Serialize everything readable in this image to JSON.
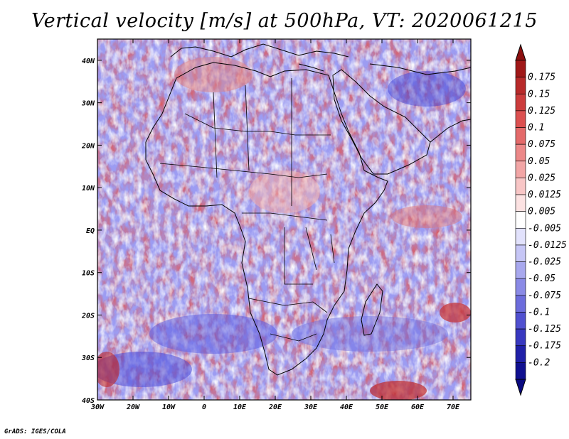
{
  "title": "Vertical velocity [m/s] at 500hPa, VT: 2020061215",
  "credit": "GrADS: IGES/COLA",
  "map": {
    "lon_range": [
      -30,
      75
    ],
    "lat_range": [
      -40,
      45
    ],
    "lat_ticks": [
      {
        "value": 40,
        "label": "40N"
      },
      {
        "value": 30,
        "label": "30N"
      },
      {
        "value": 20,
        "label": "20N"
      },
      {
        "value": 10,
        "label": "10N"
      },
      {
        "value": 0,
        "label": "EQ"
      },
      {
        "value": -10,
        "label": "10S"
      },
      {
        "value": -20,
        "label": "20S"
      },
      {
        "value": -30,
        "label": "30S"
      },
      {
        "value": -40,
        "label": "40S"
      }
    ],
    "lon_ticks": [
      {
        "value": -30,
        "label": "30W"
      },
      {
        "value": -20,
        "label": "20W"
      },
      {
        "value": -10,
        "label": "10W"
      },
      {
        "value": 0,
        "label": "0"
      },
      {
        "value": 10,
        "label": "10E"
      },
      {
        "value": 20,
        "label": "20E"
      },
      {
        "value": 30,
        "label": "30E"
      },
      {
        "value": 40,
        "label": "40E"
      },
      {
        "value": 50,
        "label": "50E"
      },
      {
        "value": 60,
        "label": "60E"
      },
      {
        "value": 70,
        "label": "70E"
      }
    ]
  },
  "colorbar": {
    "labels": [
      "0.175",
      "0.15",
      "0.125",
      "0.1",
      "0.075",
      "0.05",
      "0.025",
      "0.0125",
      "0.005",
      "-0.005",
      "-0.0125",
      "-0.025",
      "-0.05",
      "-0.075",
      "-0.1",
      "-0.125",
      "-0.175",
      "-0.2"
    ],
    "colors": [
      "#a01818",
      "#b82a2a",
      "#cc3c3c",
      "#dc5050",
      "#e46a6a",
      "#ec8888",
      "#f2a6a6",
      "#f8c6c6",
      "#fce2e2",
      "#ffffff",
      "#e2e2fc",
      "#c6c6f6",
      "#a8a8ee",
      "#8a8ae6",
      "#6c6cdc",
      "#5050d0",
      "#3838c0",
      "#2020a8",
      "#101090"
    ],
    "top_arrow_color": "#8c1010",
    "bottom_arrow_color": "#0a0a80"
  }
}
